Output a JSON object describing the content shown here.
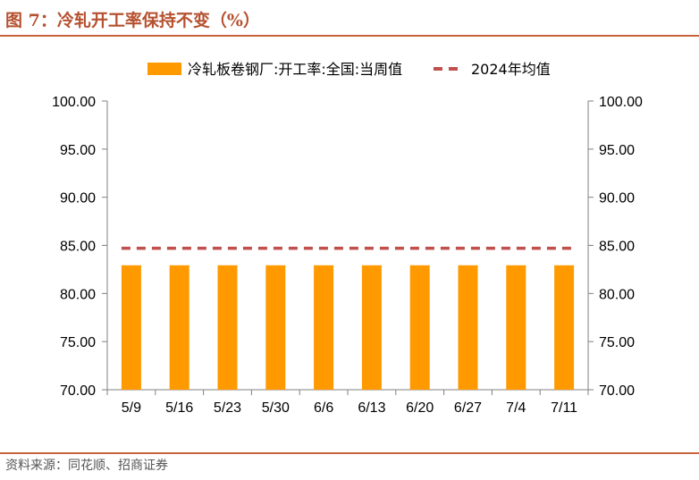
{
  "header": {
    "title": "图 7：冷轧开工率保持不变（%）"
  },
  "footer": {
    "source": "资料来源：同花顺、招商证券"
  },
  "colors": {
    "bar": "#FF9900",
    "avg_line": "#C0504D",
    "accent": "#C8643C"
  },
  "chart_data": {
    "type": "bar",
    "title": "冷轧开工率保持不变（%）",
    "categories": [
      "5/9",
      "5/16",
      "5/23",
      "5/30",
      "6/6",
      "6/13",
      "6/20",
      "6/27",
      "7/4",
      "7/11"
    ],
    "series": [
      {
        "name": "冷轧板卷钢厂:开工率:全国:当周值",
        "type": "bar",
        "values": [
          82.93,
          82.93,
          82.93,
          82.93,
          82.93,
          82.93,
          82.93,
          82.93,
          82.93,
          82.93
        ]
      },
      {
        "name": "2024年均值",
        "type": "line-dashed",
        "values": [
          84.7,
          84.7,
          84.7,
          84.7,
          84.7,
          84.7,
          84.7,
          84.7,
          84.7,
          84.7
        ]
      }
    ],
    "ylim": [
      70,
      100
    ],
    "yticks": [
      "70.00",
      "75.00",
      "80.00",
      "85.00",
      "90.00",
      "95.00",
      "100.00"
    ],
    "y2ticks": [
      "70.00",
      "75.00",
      "80.00",
      "85.00",
      "90.00",
      "95.00",
      "100.00"
    ],
    "xlabel": "",
    "ylabel": "",
    "legend": "top-center",
    "grid": false
  }
}
